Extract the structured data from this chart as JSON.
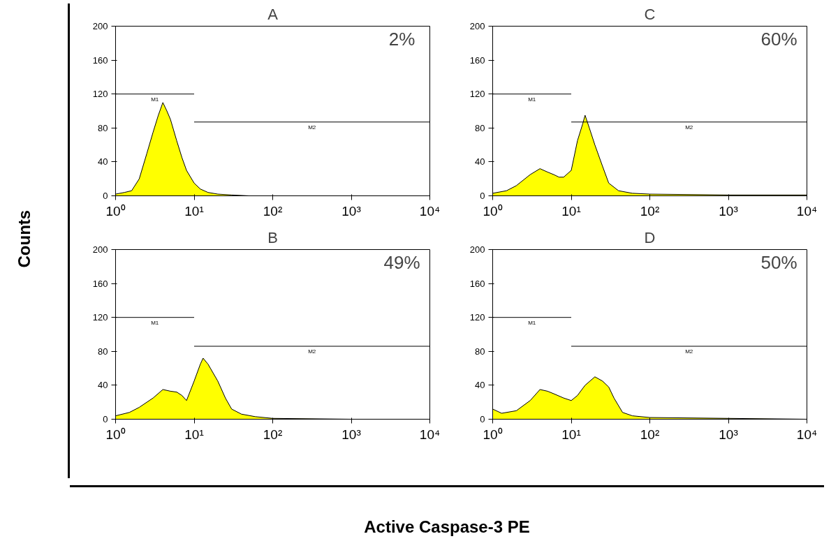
{
  "chart_data": [
    {
      "type": "area",
      "title": "A",
      "log": "x",
      "grid": false,
      "xlim": [
        1,
        10000
      ],
      "ylim": [
        0,
        200
      ],
      "xticks": [
        {
          "value": 1,
          "label": "10⁰"
        },
        {
          "value": 10,
          "label": "10¹"
        },
        {
          "value": 100,
          "label": "10²"
        },
        {
          "value": 1000,
          "label": "10³"
        },
        {
          "value": 10000,
          "label": "10⁴"
        }
      ],
      "yticks": [
        0,
        40,
        80,
        120,
        160,
        200
      ],
      "x": [
        1,
        1.3,
        1.6,
        2,
        2.5,
        3,
        3.5,
        4,
        4.5,
        5,
        6,
        7,
        8,
        10,
        12,
        15,
        20,
        30,
        50,
        100,
        1000,
        10000
      ],
      "series": [
        {
          "color": "#ffff00",
          "values": [
            2,
            4,
            6,
            20,
            50,
            75,
            95,
            110,
            100,
            90,
            65,
            45,
            30,
            15,
            8,
            4,
            2,
            1,
            0,
            0,
            0,
            0
          ]
        },
        {
          "type": "line",
          "name": "M1",
          "color": "#000000",
          "x": [
            1,
            10
          ],
          "values": [
            120,
            120
          ]
        },
        {
          "type": "line",
          "name": "M2",
          "color": "#000000",
          "x": [
            10,
            10000
          ],
          "values": [
            87,
            87
          ]
        }
      ],
      "annotations": [
        "2%"
      ]
    },
    {
      "type": "area",
      "title": "B",
      "log": "x",
      "grid": false,
      "xlim": [
        1,
        10000
      ],
      "ylim": [
        0,
        200
      ],
      "xticks": [
        {
          "value": 1,
          "label": "10⁰"
        },
        {
          "value": 10,
          "label": "10¹"
        },
        {
          "value": 100,
          "label": "10²"
        },
        {
          "value": 1000,
          "label": "10³"
        },
        {
          "value": 10000,
          "label": "10⁴"
        }
      ],
      "yticks": [
        0,
        40,
        80,
        120,
        160,
        200
      ],
      "x": [
        1,
        1.5,
        2,
        3,
        4,
        5,
        6,
        7,
        8,
        10,
        12,
        13,
        15,
        20,
        25,
        30,
        40,
        60,
        100,
        1000,
        10000
      ],
      "series": [
        {
          "color": "#ffff00",
          "values": [
            4,
            8,
            14,
            25,
            35,
            33,
            32,
            28,
            22,
            45,
            65,
            72,
            65,
            45,
            25,
            12,
            6,
            3,
            1,
            0,
            0
          ]
        },
        {
          "type": "line",
          "name": "M1",
          "color": "#000000",
          "x": [
            1,
            10
          ],
          "values": [
            120,
            120
          ]
        },
        {
          "type": "line",
          "name": "M2",
          "color": "#000000",
          "x": [
            10,
            10000
          ],
          "values": [
            86,
            86
          ]
        }
      ],
      "annotations": [
        "49%"
      ]
    },
    {
      "type": "area",
      "title": "C",
      "log": "x",
      "grid": false,
      "xlim": [
        1,
        10000
      ],
      "ylim": [
        0,
        200
      ],
      "xticks": [
        {
          "value": 1,
          "label": "10⁰"
        },
        {
          "value": 10,
          "label": "10¹"
        },
        {
          "value": 100,
          "label": "10²"
        },
        {
          "value": 1000,
          "label": "10³"
        },
        {
          "value": 10000,
          "label": "10⁴"
        }
      ],
      "yticks": [
        0,
        40,
        80,
        120,
        160,
        200
      ],
      "x": [
        1,
        1.5,
        2,
        3,
        4,
        5,
        6,
        7,
        8,
        10,
        12,
        14,
        15,
        17,
        20,
        25,
        30,
        40,
        60,
        100,
        1000,
        10000
      ],
      "series": [
        {
          "color": "#ffff00",
          "values": [
            3,
            6,
            12,
            25,
            32,
            28,
            25,
            22,
            22,
            30,
            65,
            85,
            95,
            80,
            60,
            35,
            15,
            6,
            3,
            2,
            1,
            1
          ]
        },
        {
          "type": "line",
          "name": "M1",
          "color": "#000000",
          "x": [
            1,
            10
          ],
          "values": [
            120,
            120
          ]
        },
        {
          "type": "line",
          "name": "M2",
          "color": "#000000",
          "x": [
            10,
            10000
          ],
          "values": [
            87,
            87
          ]
        }
      ],
      "annotations": [
        "60%"
      ]
    },
    {
      "type": "area",
      "title": "D",
      "log": "x",
      "grid": false,
      "xlim": [
        1,
        10000
      ],
      "ylim": [
        0,
        200
      ],
      "xticks": [
        {
          "value": 1,
          "label": "10⁰"
        },
        {
          "value": 10,
          "label": "10¹"
        },
        {
          "value": 100,
          "label": "10²"
        },
        {
          "value": 1000,
          "label": "10³"
        },
        {
          "value": 10000,
          "label": "10⁴"
        }
      ],
      "yticks": [
        0,
        40,
        80,
        120,
        160,
        200
      ],
      "x": [
        1,
        1.3,
        2,
        3,
        4,
        5,
        6,
        8,
        10,
        12,
        15,
        20,
        25,
        30,
        35,
        45,
        60,
        100,
        1000,
        10000
      ],
      "series": [
        {
          "color": "#ffff00",
          "values": [
            12,
            7,
            10,
            22,
            35,
            33,
            30,
            25,
            22,
            28,
            40,
            50,
            45,
            38,
            25,
            8,
            4,
            2,
            1,
            0
          ]
        },
        {
          "type": "line",
          "name": "M1",
          "color": "#000000",
          "x": [
            1,
            10
          ],
          "values": [
            120,
            120
          ]
        },
        {
          "type": "line",
          "name": "M2",
          "color": "#000000",
          "x": [
            10,
            10000
          ],
          "values": [
            86,
            86
          ]
        }
      ],
      "annotations": [
        "50%"
      ]
    },
    {
      "type": "other",
      "xlabel": "Active Caspase-3 PE",
      "ylabel": "Counts"
    }
  ]
}
